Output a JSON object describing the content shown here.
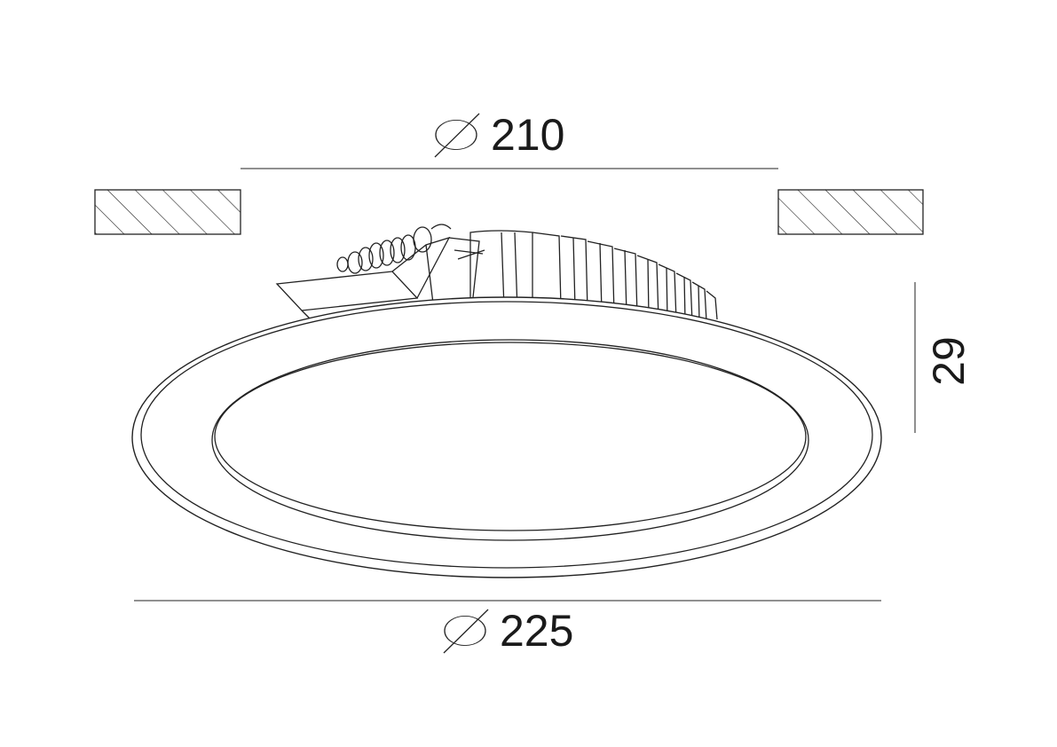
{
  "dimensions": {
    "cutout_diameter": {
      "symbol": "⌀",
      "value": "210"
    },
    "outer_diameter": {
      "symbol": "⌀",
      "value": "225"
    },
    "height": {
      "value": "29"
    }
  },
  "colors": {
    "stroke": "#222222",
    "background": "#ffffff"
  }
}
